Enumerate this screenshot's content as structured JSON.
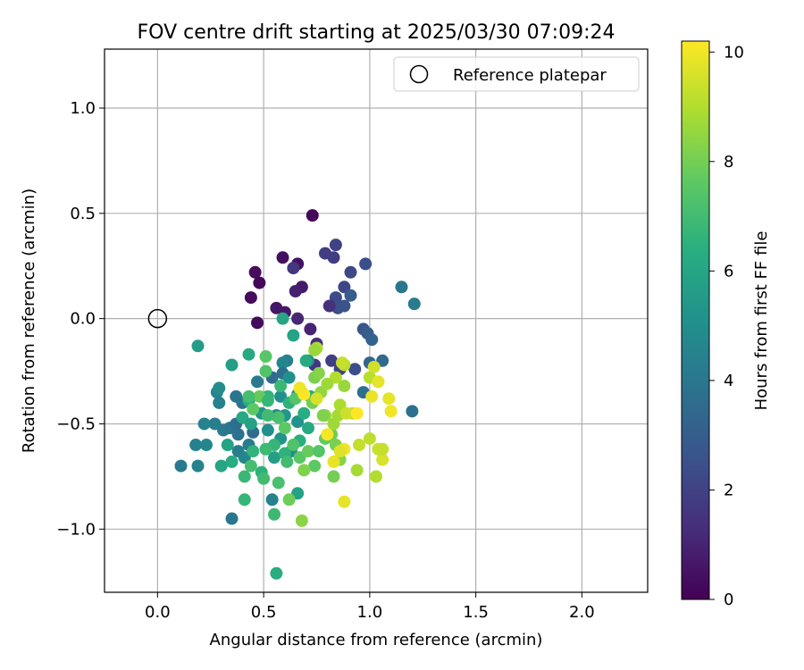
{
  "chart_data": {
    "type": "scatter",
    "title": "FOV centre drift starting at 2025/03/30 07:09:24",
    "xlabel": "Angular distance from reference (arcmin)",
    "ylabel": "Rotation from reference (arcmin)",
    "xlim": [
      -0.25,
      2.31
    ],
    "ylim": [
      -1.3,
      1.28
    ],
    "x_ticks": [
      0.0,
      0.5,
      1.0,
      1.5,
      2.0
    ],
    "x_tick_labels": [
      "0.0",
      "0.5",
      "1.0",
      "1.5",
      "2.0"
    ],
    "y_ticks": [
      1.0,
      0.5,
      0.0,
      -0.5,
      -1.0
    ],
    "y_tick_labels": [
      "1.0",
      "0.5",
      "0.0",
      "−0.5",
      "−1.0"
    ],
    "grid": true,
    "legend": {
      "position": "top-right",
      "entries": [
        "Reference platepar"
      ]
    },
    "reference_point": {
      "x": 0.0,
      "y": 0.0
    },
    "colorbar": {
      "label": "Hours from first FF file",
      "colormap": "viridis",
      "range": [
        0,
        10.2
      ],
      "ticks": [
        0,
        2,
        4,
        6,
        8,
        10
      ],
      "tick_labels": [
        "0",
        "2",
        "4",
        "6",
        "8",
        "10"
      ]
    },
    "series": [
      {
        "points": [
          [
            0.73,
            0.49,
            0.2
          ],
          [
            0.46,
            0.22,
            0.3
          ],
          [
            0.48,
            0.17,
            0.2
          ],
          [
            0.44,
            0.1,
            0.3
          ],
          [
            0.47,
            -0.02,
            0.3
          ],
          [
            0.59,
            0.29,
            0.4
          ],
          [
            0.66,
            0.26,
            0.5
          ],
          [
            0.56,
            0.05,
            0.6
          ],
          [
            0.6,
            0.03,
            0.6
          ],
          [
            0.68,
            0.15,
            0.7
          ],
          [
            0.65,
            0.13,
            0.9
          ],
          [
            0.72,
            -0.05,
            1.0
          ],
          [
            0.66,
            0.0,
            1.1
          ],
          [
            0.64,
            0.24,
            1.6
          ],
          [
            0.79,
            0.31,
            1.8
          ],
          [
            0.84,
            0.35,
            2.0
          ],
          [
            0.83,
            0.29,
            1.8
          ],
          [
            0.91,
            0.22,
            2.2
          ],
          [
            0.98,
            0.26,
            2.4
          ],
          [
            0.88,
            0.15,
            2.2
          ],
          [
            0.84,
            0.1,
            2.3
          ],
          [
            0.85,
            0.05,
            2.5
          ],
          [
            0.88,
            0.06,
            2.6
          ],
          [
            0.91,
            0.11,
            3.0
          ],
          [
            0.81,
            0.06,
            1.4
          ],
          [
            0.75,
            -0.12,
            1.3
          ],
          [
            0.74,
            -0.22,
            1.6
          ],
          [
            0.82,
            -0.2,
            1.9
          ],
          [
            0.86,
            -0.24,
            2.0
          ],
          [
            0.93,
            -0.24,
            2.4
          ],
          [
            0.97,
            -0.05,
            2.7
          ],
          [
            0.99,
            -0.07,
            2.9
          ],
          [
            1.01,
            -0.1,
            3.2
          ],
          [
            1.0,
            -0.21,
            3.4
          ],
          [
            1.06,
            -0.2,
            3.5
          ],
          [
            0.97,
            -0.35,
            3.7
          ],
          [
            1.15,
            0.15,
            4.0
          ],
          [
            1.21,
            0.07,
            4.2
          ],
          [
            1.2,
            -0.44,
            3.8
          ],
          [
            0.61,
            -0.2,
            4.4
          ],
          [
            0.59,
            -0.21,
            4.6
          ],
          [
            0.71,
            -0.2,
            4.8
          ],
          [
            0.59,
            -0.26,
            3.8
          ],
          [
            0.54,
            -0.28,
            3.6
          ],
          [
            0.47,
            -0.3,
            4.1
          ],
          [
            0.28,
            -0.35,
            4.6
          ],
          [
            0.29,
            -0.33,
            4.9
          ],
          [
            0.29,
            -0.4,
            4.4
          ],
          [
            0.37,
            -0.37,
            4.0
          ],
          [
            0.4,
            -0.4,
            3.9
          ],
          [
            0.27,
            -0.5,
            4.3
          ],
          [
            0.22,
            -0.5,
            4.5
          ],
          [
            0.31,
            -0.53,
            4.2
          ],
          [
            0.34,
            -0.52,
            4.0
          ],
          [
            0.37,
            -0.5,
            3.7
          ],
          [
            0.38,
            -0.55,
            3.8
          ],
          [
            0.43,
            -0.6,
            4.2
          ],
          [
            0.45,
            -0.54,
            3.6
          ],
          [
            0.38,
            -0.63,
            4.3
          ],
          [
            0.41,
            -0.66,
            4.6
          ],
          [
            0.18,
            -0.6,
            4.4
          ],
          [
            0.23,
            -0.6,
            4.7
          ],
          [
            0.11,
            -0.7,
            4.1
          ],
          [
            0.19,
            -0.7,
            4.5
          ],
          [
            0.35,
            -0.95,
            4.0
          ],
          [
            0.54,
            -0.86,
            4.5
          ],
          [
            0.56,
            -0.46,
            4.9
          ],
          [
            0.49,
            -0.45,
            5.3
          ],
          [
            0.52,
            -0.53,
            5.0
          ],
          [
            0.58,
            -0.57,
            5.2
          ],
          [
            0.58,
            -0.37,
            5.0
          ],
          [
            0.62,
            -0.28,
            5.1
          ],
          [
            0.66,
            -0.36,
            5.4
          ],
          [
            0.6,
            -0.46,
            5.3
          ],
          [
            0.66,
            -0.49,
            5.2
          ],
          [
            0.63,
            -0.63,
            4.9
          ],
          [
            0.55,
            -0.66,
            5.7
          ],
          [
            0.66,
            -0.83,
            5.8
          ],
          [
            0.56,
            -1.21,
            6.3
          ],
          [
            0.19,
            -0.13,
            5.6
          ],
          [
            0.35,
            -0.22,
            5.7
          ],
          [
            0.43,
            -0.17,
            6.1
          ],
          [
            0.59,
            0.0,
            6.0
          ],
          [
            0.64,
            -0.08,
            5.9
          ],
          [
            0.7,
            -0.2,
            6.2
          ],
          [
            0.72,
            -0.37,
            6.3
          ],
          [
            0.43,
            -0.39,
            6.4
          ],
          [
            0.4,
            -0.47,
            6.1
          ],
          [
            0.44,
            -0.5,
            5.8
          ],
          [
            0.52,
            -0.37,
            6.6
          ],
          [
            0.58,
            -0.32,
            6.8
          ],
          [
            0.62,
            -0.4,
            6.5
          ],
          [
            0.69,
            -0.45,
            6.3
          ],
          [
            0.71,
            -0.52,
            6.2
          ],
          [
            0.67,
            -0.58,
            6.4
          ],
          [
            0.6,
            -0.64,
            6.5
          ],
          [
            0.55,
            -0.6,
            6.7
          ],
          [
            0.51,
            -0.62,
            6.9
          ],
          [
            0.45,
            -0.63,
            6.6
          ],
          [
            0.49,
            -0.73,
            6.5
          ],
          [
            0.44,
            -0.7,
            7.1
          ],
          [
            0.41,
            -0.75,
            6.8
          ],
          [
            0.35,
            -0.68,
            6.3
          ],
          [
            0.3,
            -0.7,
            6.0
          ],
          [
            0.33,
            -0.6,
            5.9
          ],
          [
            0.5,
            -0.76,
            7.0
          ],
          [
            0.57,
            -0.78,
            7.2
          ],
          [
            0.41,
            -0.86,
            6.7
          ],
          [
            0.55,
            -0.93,
            6.9
          ],
          [
            0.61,
            -0.68,
            7.0
          ],
          [
            0.64,
            -0.6,
            7.3
          ],
          [
            0.67,
            -0.66,
            7.5
          ],
          [
            0.71,
            -0.63,
            7.8
          ],
          [
            0.74,
            -0.7,
            7.6
          ],
          [
            0.76,
            -0.63,
            7.4
          ],
          [
            0.79,
            -0.57,
            7.7
          ],
          [
            0.82,
            -0.55,
            7.9
          ],
          [
            0.84,
            -0.6,
            8.1
          ],
          [
            0.86,
            -0.67,
            8.3
          ],
          [
            0.83,
            -0.75,
            8.0
          ],
          [
            0.69,
            -0.72,
            8.2
          ],
          [
            0.68,
            -0.96,
            8.4
          ],
          [
            0.62,
            -0.86,
            7.9
          ],
          [
            0.6,
            -0.52,
            7.6
          ],
          [
            0.57,
            -0.47,
            7.2
          ],
          [
            0.52,
            -0.46,
            7.0
          ],
          [
            0.51,
            -0.25,
            7.3
          ],
          [
            0.51,
            -0.18,
            7.5
          ],
          [
            0.48,
            -0.37,
            7.8
          ],
          [
            0.52,
            -0.39,
            6.7
          ],
          [
            0.65,
            -0.38,
            7.4
          ],
          [
            0.68,
            -0.35,
            7.7
          ],
          [
            0.73,
            -0.4,
            8.0
          ],
          [
            0.74,
            -0.28,
            8.1
          ],
          [
            0.76,
            -0.26,
            8.3
          ],
          [
            0.77,
            -0.35,
            8.5
          ],
          [
            0.79,
            -0.46,
            8.6
          ],
          [
            0.83,
            -0.5,
            8.7
          ],
          [
            0.85,
            -0.46,
            8.8
          ],
          [
            0.86,
            -0.41,
            8.9
          ],
          [
            0.84,
            -0.28,
            9.0
          ],
          [
            0.8,
            -0.31,
            8.7
          ],
          [
            0.88,
            -0.32,
            8.6
          ],
          [
            0.88,
            -0.22,
            9.1
          ],
          [
            0.87,
            -0.21,
            9.3
          ],
          [
            0.92,
            -0.45,
            9.2
          ],
          [
            0.89,
            -0.45,
            9.4
          ],
          [
            0.95,
            -0.6,
            9.3
          ],
          [
            1.0,
            -0.28,
            9.1
          ],
          [
            1.02,
            -0.23,
            9.5
          ],
          [
            1.04,
            -0.3,
            9.7
          ],
          [
            1.04,
            -0.62,
            9.4
          ],
          [
            1.06,
            -0.67,
            9.6
          ],
          [
            1.06,
            -0.62,
            9.3
          ],
          [
            1.09,
            -0.38,
            9.8
          ],
          [
            1.1,
            -0.44,
            10.0
          ],
          [
            1.0,
            -0.57,
            9.2
          ],
          [
            1.03,
            -0.75,
            9.0
          ],
          [
            0.94,
            -0.72,
            8.8
          ],
          [
            0.88,
            -0.87,
            9.8
          ],
          [
            0.88,
            -0.62,
            10.0
          ],
          [
            0.86,
            -0.63,
            9.7
          ],
          [
            0.83,
            -0.68,
            9.9
          ],
          [
            0.8,
            -0.55,
            10.1
          ],
          [
            0.69,
            -0.36,
            10.2
          ],
          [
            0.67,
            -0.33,
            10.0
          ],
          [
            0.75,
            -0.38,
            9.6
          ],
          [
            0.94,
            -0.45,
            10.2
          ],
          [
            1.01,
            -0.37,
            9.9
          ],
          [
            1.04,
            -0.3,
            9.8
          ],
          [
            0.75,
            -0.14,
            8.9
          ],
          [
            0.74,
            -0.15,
            8.6
          ],
          [
            0.78,
            -0.46,
            8.2
          ],
          [
            0.45,
            -0.43,
            7.6
          ],
          [
            0.43,
            -0.37,
            7.1
          ]
        ]
      }
    ]
  }
}
